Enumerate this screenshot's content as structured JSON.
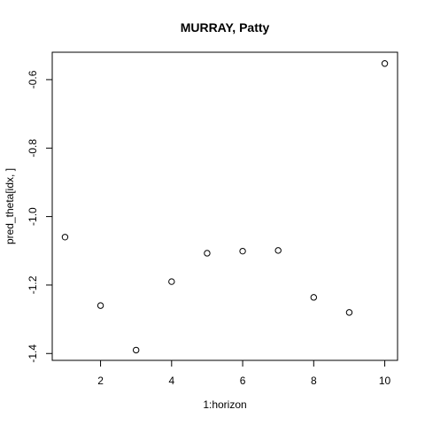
{
  "chart_data": {
    "type": "scatter",
    "title": "MURRAY, Patty",
    "xlabel": "1:horizon",
    "ylabel": "pred_theta[idx, ]",
    "x": [
      1,
      2,
      3,
      4,
      5,
      6,
      7,
      8,
      9,
      10
    ],
    "y": [
      -1.06,
      -1.26,
      -1.39,
      -1.19,
      -1.107,
      -1.101,
      -1.099,
      -1.236,
      -1.28,
      -0.553
    ],
    "xlim": [
      0.64,
      10.36
    ],
    "ylim": [
      -1.42,
      -0.52
    ],
    "xticks": [
      2,
      4,
      6,
      8,
      10
    ],
    "xtick_labels": [
      "2",
      "4",
      "6",
      "8",
      "10"
    ],
    "yticks": [
      -1.4,
      -1.2,
      -1.0,
      -0.8,
      -0.6
    ],
    "ytick_labels": [
      "-1.4",
      "-1.2",
      "-1.0",
      "-0.8",
      "-0.6"
    ],
    "grid": false,
    "marker": "open-circle",
    "marker_color": "#000000"
  }
}
